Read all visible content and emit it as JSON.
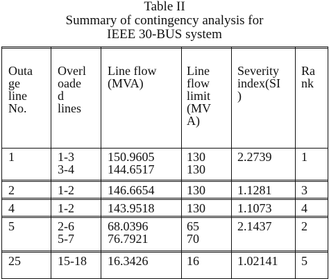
{
  "caption": {
    "line1": "Table II",
    "line2": "Summary of contingency analysis for",
    "line3": "IEEE 30-BUS system"
  },
  "headers": [
    [
      "Outa",
      "ge",
      "line",
      "No."
    ],
    [
      "Overl",
      "oade",
      "d",
      "lines"
    ],
    [
      "Line flow",
      "(MVA)"
    ],
    [
      "Line",
      "flow",
      "limit",
      "(MV",
      "A)"
    ],
    [
      "Severity",
      "index(SI",
      ")"
    ],
    [
      "Ra",
      "nk"
    ]
  ],
  "rows": [
    {
      "outage_line": [
        "1"
      ],
      "overloaded_lines": [
        "1-3",
        "3-4"
      ],
      "line_flow": [
        "150.9605",
        "144.6517"
      ],
      "flow_limit": [
        "130",
        "130"
      ],
      "severity_index": [
        "2.2739"
      ],
      "rank": [
        "1"
      ]
    },
    {
      "outage_line": [
        "2"
      ],
      "overloaded_lines": [
        "1-2"
      ],
      "line_flow": [
        "146.6654"
      ],
      "flow_limit": [
        "130"
      ],
      "severity_index": [
        "1.1281"
      ],
      "rank": [
        "3"
      ]
    },
    {
      "outage_line": [
        "4"
      ],
      "overloaded_lines": [
        "1-2"
      ],
      "line_flow": [
        "143.9518"
      ],
      "flow_limit": [
        "130"
      ],
      "severity_index": [
        "1.1073"
      ],
      "rank": [
        "4"
      ]
    },
    {
      "outage_line": [
        "5"
      ],
      "overloaded_lines": [
        "2-6",
        "5-7"
      ],
      "line_flow": [
        "68.0396",
        "76.7921"
      ],
      "flow_limit": [
        "65",
        "70"
      ],
      "severity_index": [
        "2.1437"
      ],
      "rank": [
        "2"
      ]
    },
    {
      "outage_line": [
        "25"
      ],
      "overloaded_lines": [
        "15-18"
      ],
      "line_flow": [
        "16.3426"
      ],
      "flow_limit": [
        "16"
      ],
      "severity_index": [
        "1.02141"
      ],
      "rank": [
        "5"
      ]
    }
  ]
}
